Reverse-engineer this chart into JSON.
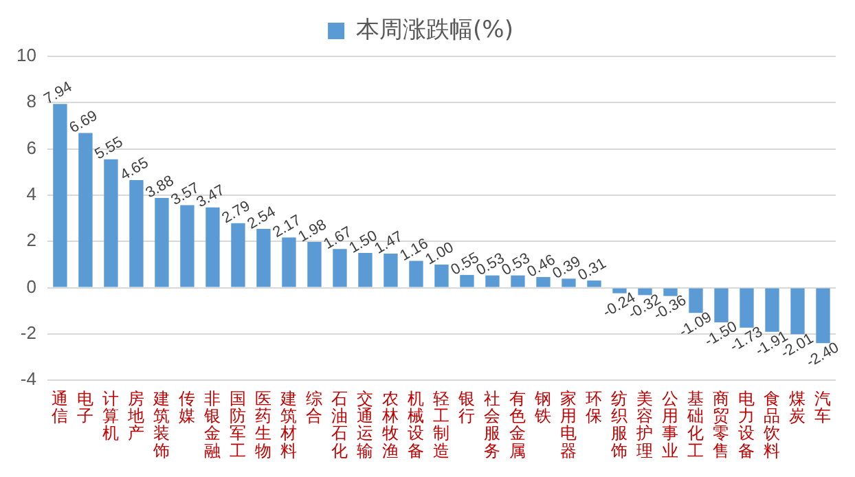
{
  "chart_data": {
    "type": "bar",
    "categories": [
      "通信",
      "电子",
      "计算机",
      "房地产",
      "建筑装饰",
      "传媒",
      "非银金融",
      "国防军工",
      "医药生物",
      "建筑材料",
      "综合",
      "石油石化",
      "交通运输",
      "农林牧渔",
      "机械设备",
      "轻工制造",
      "银行",
      "社会服务",
      "有色金属",
      "钢铁",
      "家用电器",
      "环保",
      "纺织服饰",
      "美容护理",
      "公用事业",
      "基础化工",
      "商贸零售",
      "电力设备",
      "食品饮料",
      "煤炭",
      "汽车"
    ],
    "series": [
      {
        "name": "本周涨跌幅(%)",
        "color": "#5b9bd5",
        "values": [
          7.94,
          6.69,
          5.55,
          4.65,
          3.88,
          3.57,
          3.47,
          2.79,
          2.54,
          2.17,
          1.98,
          1.67,
          1.5,
          1.47,
          1.16,
          1.0,
          0.55,
          0.53,
          0.53,
          0.46,
          0.39,
          0.31,
          -0.24,
          -0.32,
          -0.36,
          -1.09,
          -1.5,
          -1.73,
          -1.91,
          -2.01,
          -2.4
        ],
        "value_labels": [
          "7.94",
          "6.69",
          "5.55",
          "4.65",
          "3.88",
          "3.57",
          "3.47",
          "2.79",
          "2.54",
          "2.17",
          "1.98",
          "1.67",
          "1.50",
          "1.47",
          "1.16",
          "1.00",
          "0.55",
          "0.53",
          "0.53",
          "0.46",
          "0.39",
          "0.31",
          "-0.24",
          "-0.32",
          "-0.36",
          "-1.09",
          "-1.50",
          "-1.73",
          "-1.91",
          "-2.01",
          "-2.40"
        ]
      }
    ],
    "ylim": [
      -4,
      10
    ],
    "yticks": [
      -4,
      -2,
      0,
      2,
      4,
      6,
      8,
      10
    ],
    "grid": "y",
    "legend": "top"
  }
}
